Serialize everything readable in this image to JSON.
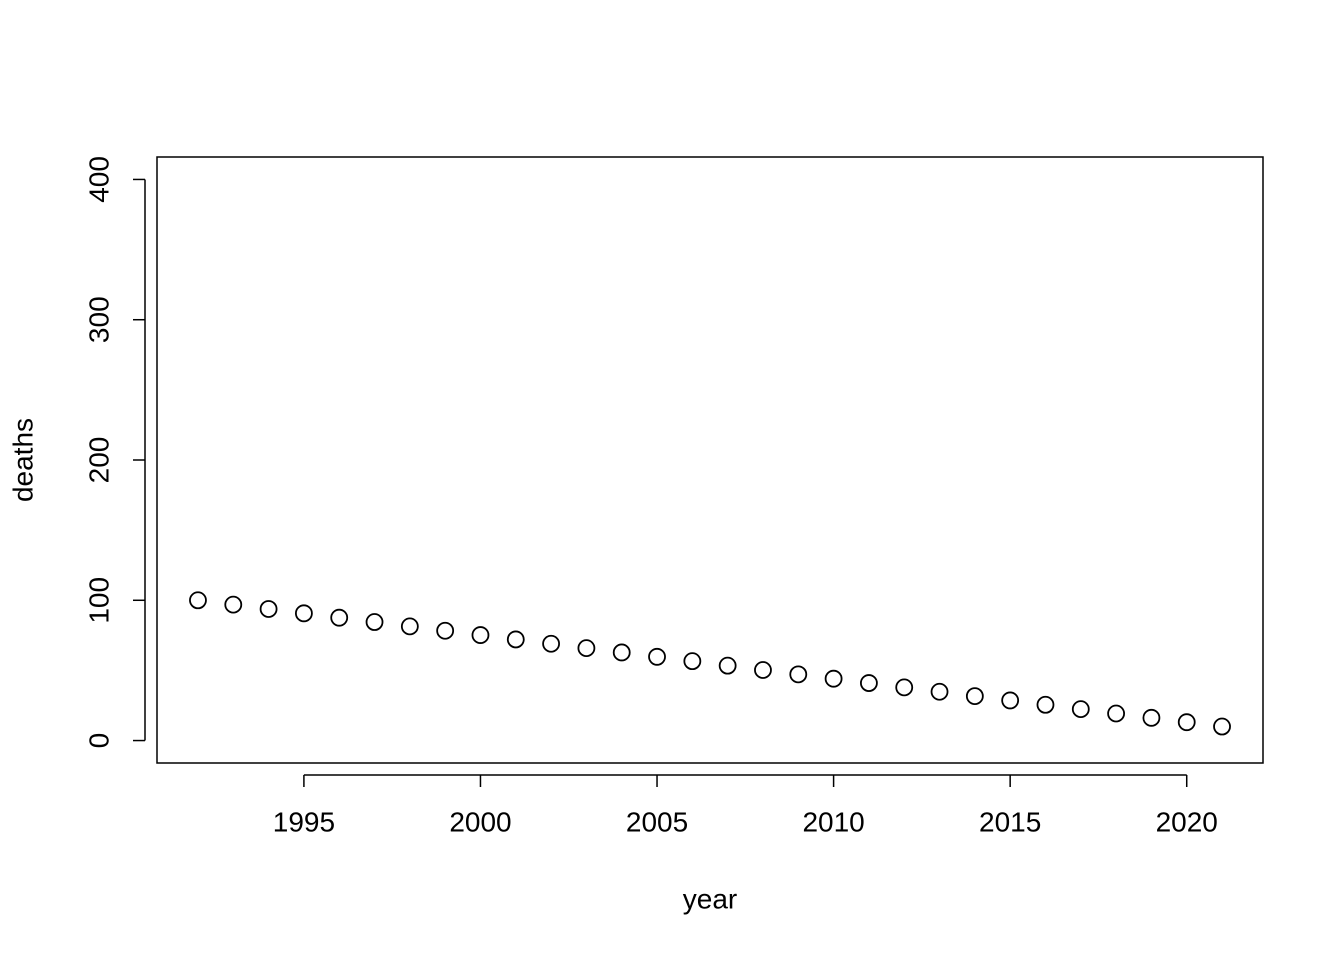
{
  "chart_data": {
    "type": "scatter",
    "x_label": "year",
    "y_label": "deaths",
    "x": [
      1992,
      1993,
      1994,
      1995,
      1996,
      1997,
      1998,
      1999,
      2000,
      2001,
      2002,
      2003,
      2004,
      2005,
      2006,
      2007,
      2008,
      2009,
      2010,
      2011,
      2012,
      2013,
      2014,
      2015,
      2016,
      2017,
      2018,
      2019,
      2020,
      2021
    ],
    "values": [
      100,
      96.9,
      93.8,
      90.7,
      87.6,
      84.5,
      81.4,
      78.3,
      75.2,
      72.1,
      69.0,
      65.9,
      62.8,
      59.7,
      56.6,
      53.4,
      50.3,
      47.2,
      44.1,
      41.0,
      37.9,
      34.8,
      31.7,
      28.6,
      25.5,
      22.4,
      19.3,
      16.2,
      13.1,
      10
    ],
    "color": "#000000",
    "xlim": [
      1990.84,
      2022.16
    ],
    "xticks": [
      1995,
      2000,
      2005,
      2010,
      2015,
      2020
    ],
    "ylim": [
      -16,
      416
    ],
    "yticks": [
      0,
      100,
      200,
      300,
      400
    ]
  }
}
